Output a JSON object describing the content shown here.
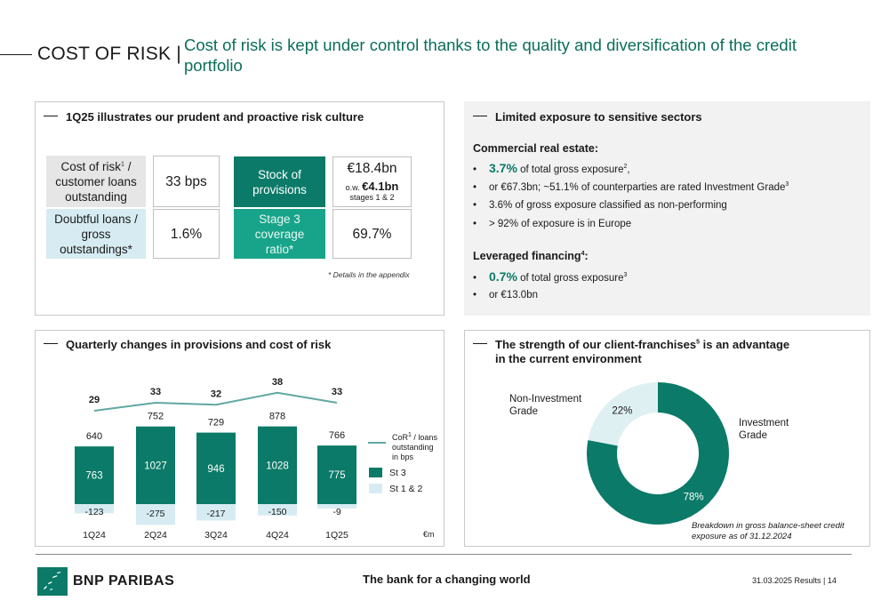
{
  "header": {
    "label": "COST OF RISK |",
    "title": "Cost of risk is kept under control thanks to the quality and diversification of the credit portfolio"
  },
  "panel_culture": {
    "title": "1Q25 illustrates our prudent and proactive risk culture",
    "cor_label_a": "Cost of risk",
    "cor_label_sup": "1",
    "cor_label_b": " / customer loans outstanding",
    "cor_value": "33 bps",
    "doubtful_label": "Doubtful loans / gross outstandings*",
    "doubtful_value": "1.6%",
    "stock_label": "Stock of provisions",
    "stock_value": "€18.4bn",
    "stock_ow_prefix": "o.w.",
    "stock_ow_value": "€4.1bn",
    "stock_ow_note": "stages 1 & 2",
    "stage3_label": "Stage 3 coverage ratio*",
    "stage3_value": "69.7%",
    "footnote": "* Details in the appendix"
  },
  "panel_sectors": {
    "title": "Limited exposure to sensitive sectors",
    "cre_heading": "Commercial real estate:",
    "cre_b1_value": "3.7%",
    "cre_b1_text": " of total gross exposure",
    "cre_b1_sup": "2",
    "cre_b1_end": ",",
    "cre_b2_text": "or €67.3bn; ~51.1% of counterparties are rated Investment Grade",
    "cre_b2_sup": "3",
    "cre_b3_text": "3.6% of gross exposure classified as non-performing",
    "cre_b4_text": "> 92% of exposure is in Europe",
    "lev_heading": "Leveraged financing",
    "lev_heading_sup": "4",
    "lev_heading_end": ":",
    "lev_b1_value": "0.7%",
    "lev_b1_text": " of total gross exposure",
    "lev_b1_sup": "3",
    "lev_b2_text": "or €13.0bn"
  },
  "panel_quarterly": {
    "title": "Quarterly changes in provisions and cost of risk",
    "legend_cor_a": "CoR",
    "legend_cor_sup": "1",
    "legend_cor_b": " / loans",
    "legend_cor_c": "outstanding",
    "legend_cor_d": "in bps",
    "legend_st3": "St 3",
    "legend_st12": "St 1 & 2",
    "unit": "€m"
  },
  "panel_franchise": {
    "title_a": "The strength of our client-franchises",
    "title_sup": "5",
    "title_b": " is an advantage",
    "title_c": "in the current environment",
    "label_ig_a": "Investment",
    "label_ig_b": "Grade",
    "label_nig_a": "Non-Investment",
    "label_nig_b": "Grade",
    "note_a": "Breakdown in gross balance-sheet credit",
    "note_b": "exposure as of 31.12.2024"
  },
  "footer": {
    "logo": "BNP PARIBAS",
    "slogan": "The bank for a changing world",
    "page": "31.03.2025 Results | 14"
  },
  "colors": {
    "brand_green": "#0b7a68",
    "header_green": "#0b6e5a",
    "st12_blue": "#d6ecf2",
    "cor_line": "#5fa8a0",
    "donut_light": "#dff0f3"
  },
  "chart_data": [
    {
      "type": "bar",
      "categories": [
        "1Q24",
        "2Q24",
        "3Q24",
        "4Q24",
        "1Q25"
      ],
      "series": [
        {
          "name": "St 3",
          "values": [
            763,
            1027,
            946,
            1028,
            775
          ]
        },
        {
          "name": "St 1 & 2",
          "values": [
            -123,
            -275,
            -217,
            -150,
            -9
          ]
        },
        {
          "name": "CoR1 / loans outstanding in bps",
          "values": [
            29,
            33,
            32,
            38,
            33
          ]
        }
      ],
      "totals": [
        640,
        752,
        729,
        878,
        766
      ],
      "unit": "€m"
    },
    {
      "type": "pie",
      "categories": [
        "Investment Grade",
        "Non-Investment Grade"
      ],
      "values": [
        78,
        22
      ],
      "labels": [
        "78%",
        "22%"
      ]
    }
  ]
}
